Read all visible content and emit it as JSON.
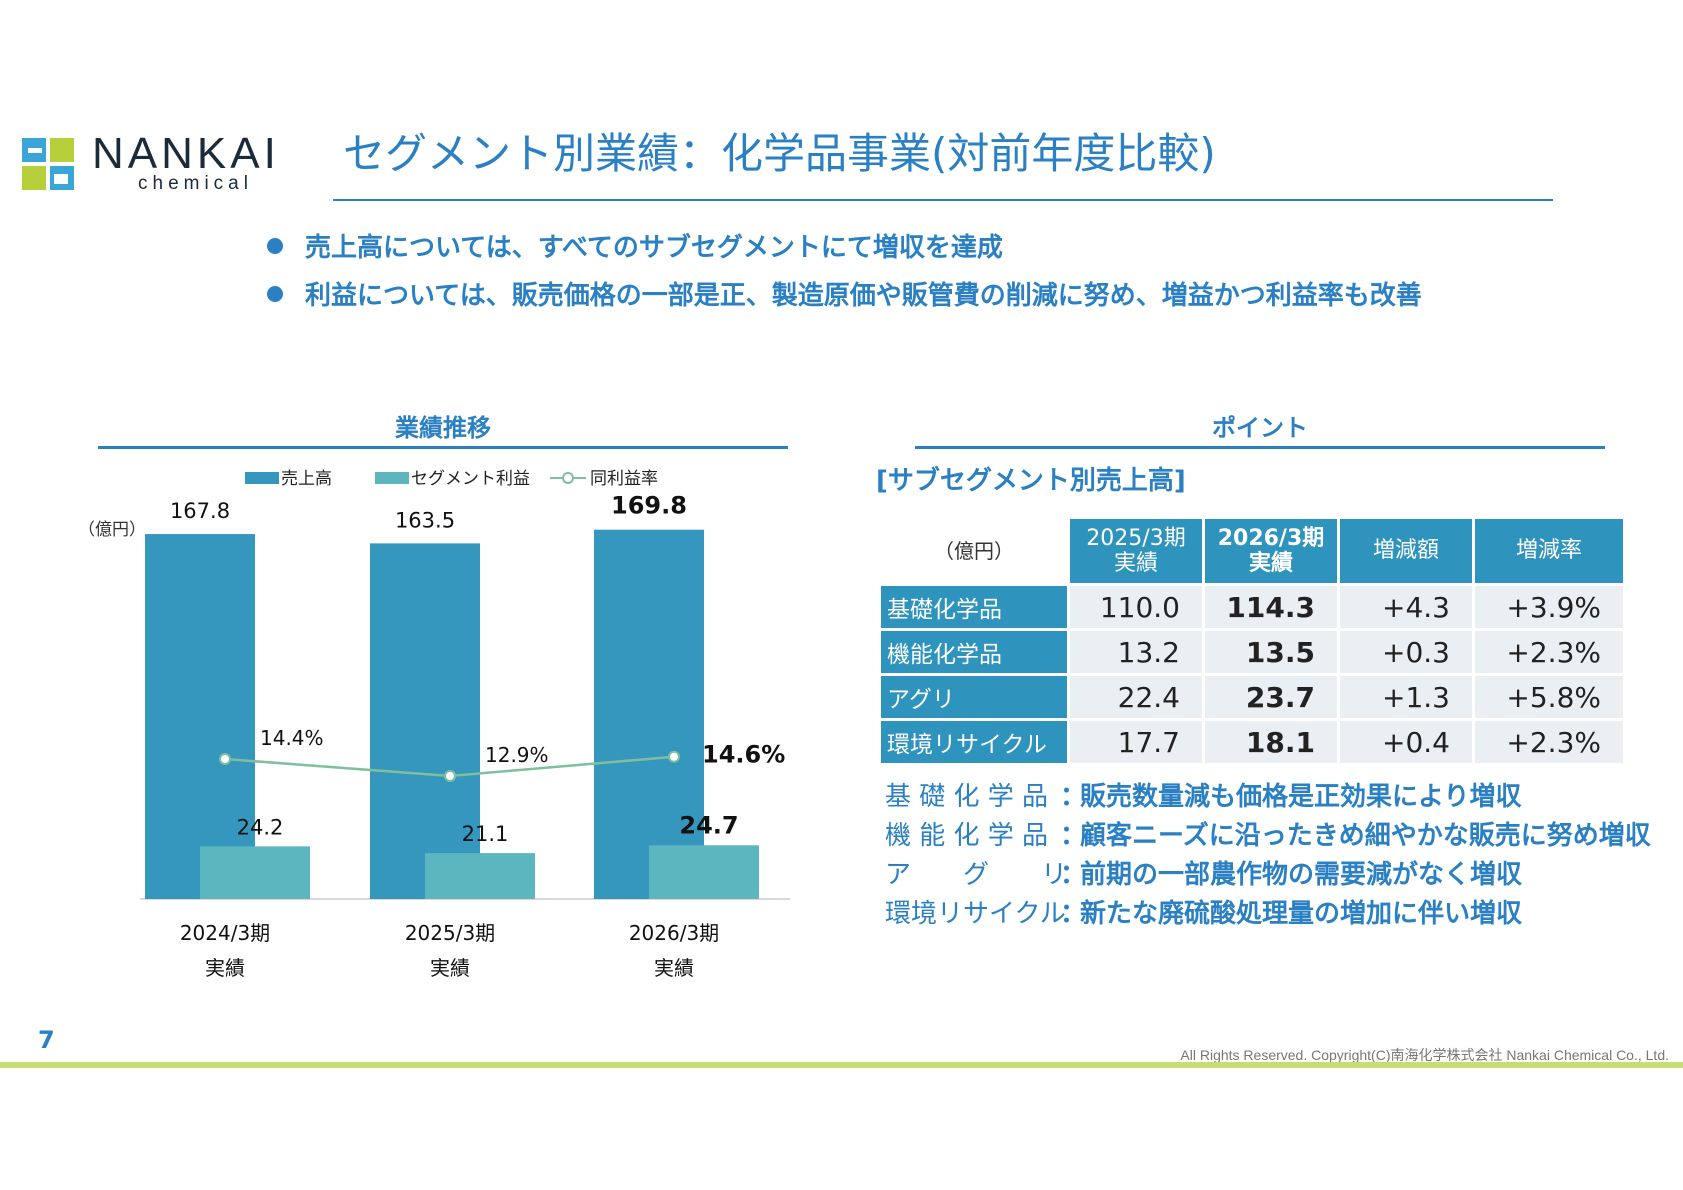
{
  "logo": {
    "name": "NANKAI",
    "sub": "chemical"
  },
  "title": "セグメント別業績：化学品事業(対前年度比較)",
  "bullets": [
    "売上高については、すべてのサブセグメントにて増収を達成",
    "利益については、販売価格の一部是正、製造原価や販管費の削減に努め、増益かつ利益率も改善"
  ],
  "chart_section_title": "業績推移",
  "point_section_title": "ポイント",
  "colors": {
    "accent": "#2b80c3",
    "sales": "#3596be",
    "profit": "#5bb6bf",
    "margin": "#7fbf9f",
    "footer": "#c8dc76"
  },
  "chart_data": {
    "type": "bar",
    "unit_label": "（億円）",
    "categories": [
      "2024/3期",
      "2025/3期",
      "2026/3期"
    ],
    "category_sublabels": [
      "実績",
      "実績",
      "実績"
    ],
    "series": [
      {
        "name": "売上高",
        "type": "bar",
        "values": [
          167.8,
          163.5,
          169.8
        ],
        "labels": [
          "167.8",
          "163.5",
          "169.8"
        ]
      },
      {
        "name": "セグメント利益",
        "type": "bar",
        "values": [
          24.2,
          21.1,
          24.7
        ],
        "labels": [
          "24.2",
          "21.1",
          "24.7"
        ]
      },
      {
        "name": "同利益率",
        "type": "line",
        "values": [
          14.4,
          12.9,
          14.6
        ],
        "labels": [
          "14.4%",
          "12.9%",
          "14.6%"
        ]
      }
    ],
    "highlight_index": 2,
    "legend": "top",
    "grid": false
  },
  "table": {
    "subtitle": "[サブセグメント別売上高]",
    "unit": "（億円）",
    "headers": [
      {
        "line1": "2025/3期",
        "line2": "実績",
        "bold": false
      },
      {
        "line1": "2026/3期",
        "line2": "実績",
        "bold": true
      },
      {
        "line1": "増減額",
        "line2": "",
        "bold": false
      },
      {
        "line1": "増減率",
        "line2": "",
        "bold": false
      }
    ],
    "rows": [
      {
        "label": "基礎化学品",
        "prev": "110.0",
        "curr": "114.3",
        "diff": "+4.3",
        "rate": "+3.9%"
      },
      {
        "label": "機能化学品",
        "prev": "13.2",
        "curr": "13.5",
        "diff": "+0.3",
        "rate": "+2.3%"
      },
      {
        "label": "アグリ",
        "prev": "22.4",
        "curr": "23.7",
        "diff": "+1.3",
        "rate": "+5.8%"
      },
      {
        "label": "環境リサイクル",
        "prev": "17.7",
        "curr": "18.1",
        "diff": "+0.4",
        "rate": "+2.3%"
      }
    ]
  },
  "notes": [
    {
      "label": "基 礎 化 学 品",
      "colon": "：",
      "text": "販売数量減も価格是正効果により増収"
    },
    {
      "label": "機 能 化 学 品",
      "colon": "：",
      "text": "顧客ニーズに沿ったきめ細やかな販売に努め増収"
    },
    {
      "label": "ア　　グ　　リ",
      "colon": "：",
      "text": "前期の一部農作物の需要減がなく増収"
    },
    {
      "label": "環境リサイクル",
      "colon": "：",
      "text": "新たな廃硫酸処理量の増加に伴い増収"
    }
  ],
  "page_number": "7",
  "copyright": "All Rights Reserved. Copyright(C)南海化学株式会社 Nankai Chemical Co., Ltd."
}
